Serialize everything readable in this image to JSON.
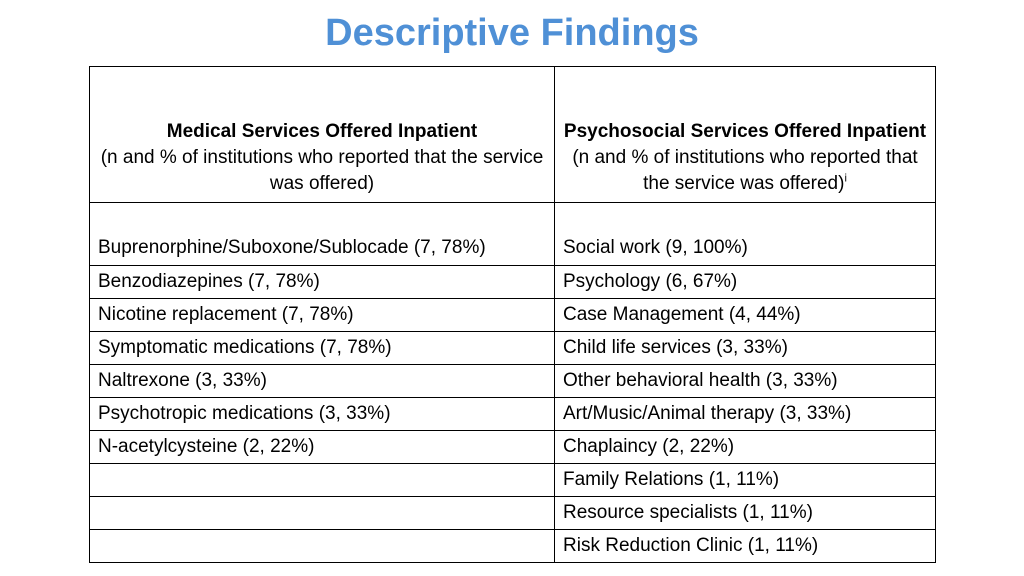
{
  "title": "Descriptive Findings",
  "table": {
    "headers": [
      {
        "bold": "Medical Services Offered Inpatient",
        "sub": "(n and % of institutions who reported that the service was offered)",
        "sup": ""
      },
      {
        "bold": "Psychosocial Services Offered Inpatient",
        "sub": "(n and % of institutions who reported that the service was offered)",
        "sup": "i"
      }
    ],
    "rows": [
      [
        "Buprenorphine/Suboxone/Sublocade (7, 78%)",
        "Social work (9, 100%)"
      ],
      [
        "Benzodiazepines (7, 78%)",
        "Psychology (6, 67%)"
      ],
      [
        "Nicotine replacement (7, 78%)",
        "Case Management (4, 44%)"
      ],
      [
        "Symptomatic medications (7, 78%)",
        "Child life services (3, 33%)"
      ],
      [
        "Naltrexone (3, 33%)",
        "Other behavioral health (3, 33%)"
      ],
      [
        "Psychotropic medications (3, 33%)",
        "Art/Music/Animal therapy (3, 33%)"
      ],
      [
        "N-acetylcysteine (2, 22%)",
        "Chaplaincy (2, 22%)"
      ],
      [
        "",
        "Family Relations (1, 11%)"
      ],
      [
        "",
        "Resource specialists (1, 11%)"
      ],
      [
        "",
        "Risk Reduction Clinic (1, 11%)"
      ]
    ]
  }
}
